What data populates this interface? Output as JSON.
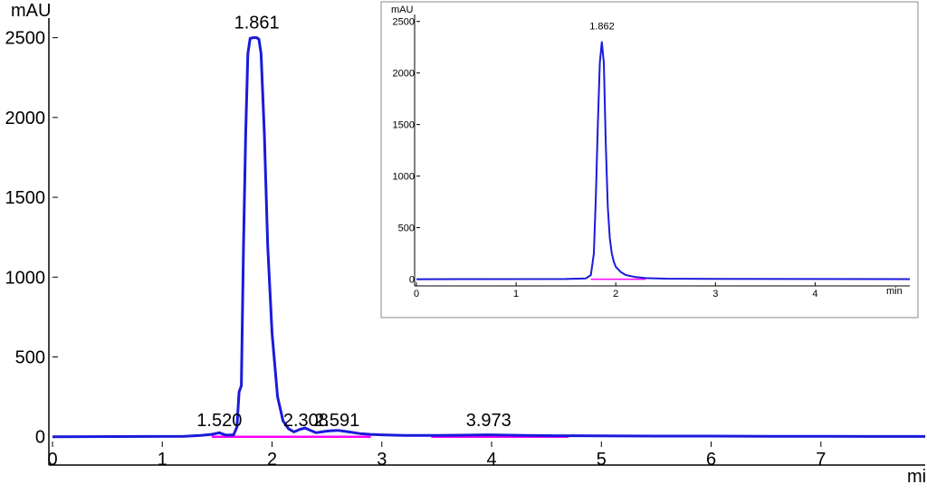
{
  "chart_data": [
    {
      "type": "line",
      "title": "",
      "ylabel": "mAU",
      "xlabel": "min",
      "xlim": [
        0,
        7.95
      ],
      "ylim": [
        -30,
        2600
      ],
      "x_ticks": [
        "0",
        "1",
        "2",
        "3",
        "4",
        "5",
        "6",
        "7"
      ],
      "y_ticks": [
        "0",
        "500",
        "1000",
        "1500",
        "2000",
        "2500"
      ],
      "series": [
        {
          "color": "#1a1adb",
          "x": [
            0,
            1.2,
            1.35,
            1.45,
            1.52,
            1.58,
            1.65,
            1.68,
            1.7,
            1.72,
            1.74,
            1.76,
            1.78,
            1.8,
            1.83,
            1.86,
            1.88,
            1.9,
            1.93,
            1.96,
            2.0,
            2.05,
            2.1,
            2.15,
            2.2,
            2.25,
            2.3,
            2.35,
            2.4,
            2.45,
            2.5,
            2.55,
            2.6,
            2.65,
            2.7,
            2.8,
            2.9,
            3.0,
            3.2,
            3.5,
            3.8,
            3.97,
            4.1,
            4.3,
            4.6,
            5.0,
            5.5,
            6.0,
            6.5,
            7.0,
            7.5,
            7.95
          ],
          "y": [
            0,
            3,
            8,
            15,
            25,
            10,
            12,
            60,
            280,
            320,
            1200,
            1900,
            2400,
            2495,
            2500,
            2500,
            2490,
            2400,
            1900,
            1200,
            650,
            250,
            100,
            50,
            30,
            45,
            55,
            40,
            25,
            30,
            35,
            38,
            40,
            35,
            30,
            20,
            15,
            12,
            8,
            8,
            10,
            12,
            10,
            8,
            6,
            5,
            4,
            4,
            3,
            3,
            2,
            2
          ]
        }
      ],
      "peaks": [
        {
          "rt": 1.52,
          "label": "1.520",
          "height": 25
        },
        {
          "rt": 1.861,
          "label": "1.861",
          "height": 2500
        },
        {
          "rt": 2.308,
          "label": "2.308",
          "height": 55
        },
        {
          "rt": 2.591,
          "label": "2.591",
          "height": 40
        },
        {
          "rt": 3.973,
          "label": "3.973",
          "height": 12
        }
      ],
      "integration_segments": [
        [
          1.45,
          2.45
        ],
        [
          2.2,
          2.9
        ],
        [
          3.45,
          4.7
        ]
      ],
      "integration_color": "#ff00ff"
    },
    {
      "type": "line",
      "title": "",
      "ylabel": "mAU",
      "xlabel": "min",
      "xlim": [
        0,
        4.95
      ],
      "ylim": [
        -30,
        2550
      ],
      "x_ticks": [
        "0",
        "1",
        "2",
        "3",
        "4"
      ],
      "y_ticks": [
        "0",
        "500",
        "1000",
        "1500",
        "2000",
        "2500"
      ],
      "series": [
        {
          "color": "#1a1adb",
          "x": [
            0,
            1.5,
            1.7,
            1.75,
            1.78,
            1.8,
            1.82,
            1.84,
            1.86,
            1.88,
            1.9,
            1.92,
            1.94,
            1.96,
            1.98,
            2.0,
            2.05,
            2.1,
            2.2,
            2.3,
            2.5,
            3.0,
            4.0,
            4.95
          ],
          "y": [
            0,
            2,
            8,
            40,
            250,
            800,
            1500,
            2100,
            2300,
            2100,
            1300,
            700,
            400,
            250,
            170,
            120,
            70,
            40,
            20,
            10,
            5,
            3,
            2,
            1
          ]
        }
      ],
      "peaks": [
        {
          "rt": 1.862,
          "label": "1.862",
          "height": 2300
        }
      ],
      "integration_segments": [
        [
          1.75,
          2.3
        ]
      ],
      "integration_color": "#ff00ff"
    }
  ]
}
